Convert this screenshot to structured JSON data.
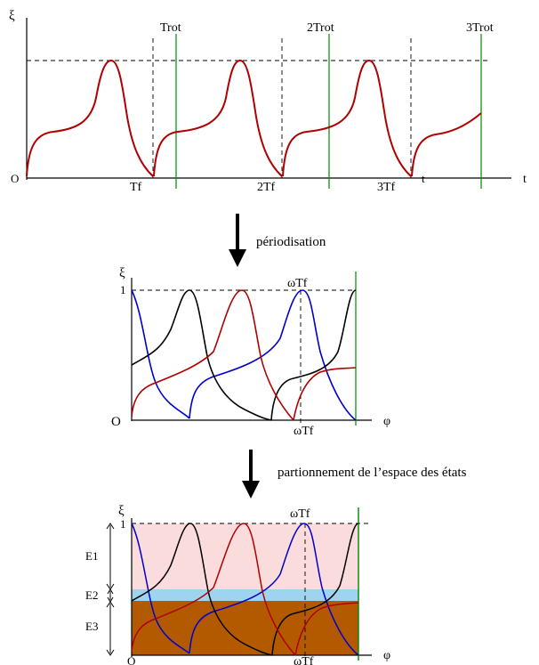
{
  "panel1": {
    "ylabel": "ξ",
    "xlabel": "t",
    "origin": "O",
    "period_labels": [
      "Trot",
      "2Trot",
      "3Trot"
    ],
    "tf_labels": [
      "Tf",
      "2Tf",
      "3Tf"
    ],
    "axis_t_near": "t"
  },
  "step1_label": "périodisation",
  "panel2": {
    "ylabel": "ξ",
    "one": "1",
    "origin": "O",
    "xlabel": "φ",
    "wtf_top": "ωTf",
    "wtf_bottom": "ωTf"
  },
  "step2_label": "partionnement de l’espace des états",
  "panel3": {
    "ylabel": "ξ",
    "one": "1",
    "origin": "O",
    "xlabel": "φ",
    "wtf_top": "ωTf",
    "wtf_bottom": "ωTf",
    "regions": [
      "E1",
      "E2",
      "E3"
    ]
  },
  "colors": {
    "trajectory": "#b00000",
    "trajectory_2": "#000000",
    "trajectory_3": "#0000cc",
    "period_line": "#008800",
    "region_E1": "#fadcdc",
    "region_E2": "#9fd4ee",
    "region_E3": "#b35a00"
  }
}
